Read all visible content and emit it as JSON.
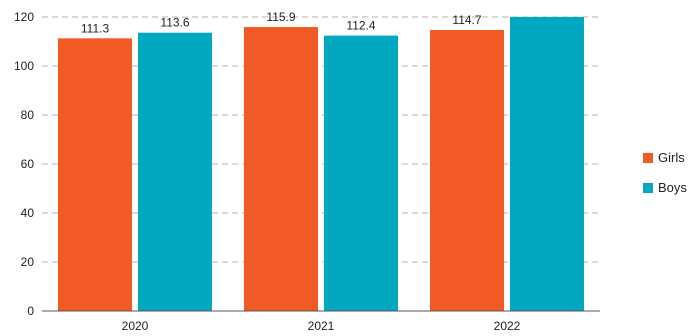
{
  "chart_data": {
    "type": "bar",
    "categories": [
      "2020",
      "2021",
      "2022"
    ],
    "series": [
      {
        "name": "Girls",
        "color": "#f15a24",
        "values": [
          111.3,
          115.9,
          114.7
        ],
        "labels": [
          "111.3",
          "115.9",
          "114.7"
        ]
      },
      {
        "name": "Boys",
        "color": "#00a9bf",
        "values": [
          113.6,
          112.4,
          120
        ],
        "labels": [
          "113.6",
          "112.4",
          ""
        ]
      }
    ],
    "title": "",
    "xlabel": "",
    "ylabel": "",
    "ylim": [
      0,
      120
    ],
    "yticks": [
      0,
      20,
      40,
      60,
      80,
      100,
      120
    ],
    "grid": true,
    "legend_position": "right"
  }
}
